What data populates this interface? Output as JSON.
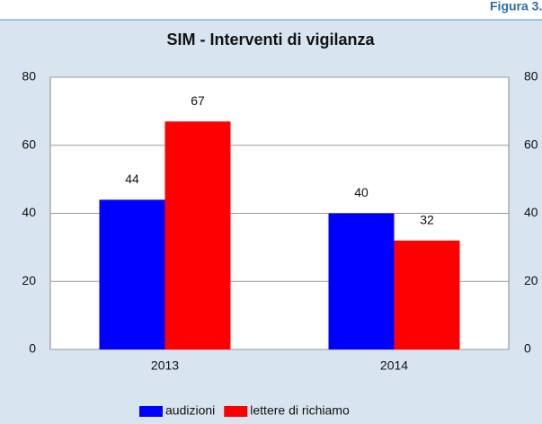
{
  "chart_data": {
    "type": "bar",
    "figure_label": "Figura 3.",
    "title": "SIM - Interventi di vigilanza",
    "categories": [
      "2013",
      "2014"
    ],
    "series": [
      {
        "name": "audizioni",
        "color": "#0000ff",
        "values": [
          44,
          40
        ]
      },
      {
        "name": "lettere di richiamo",
        "color": "#ff0000",
        "values": [
          67,
          32
        ]
      }
    ],
    "ylim": [
      0,
      80
    ],
    "yticks": [
      0,
      20,
      40,
      60,
      80
    ],
    "y2lim": [
      0,
      80
    ],
    "y2ticks": [
      0,
      20,
      40,
      60,
      80
    ],
    "grid": true,
    "legend": "bottom"
  }
}
